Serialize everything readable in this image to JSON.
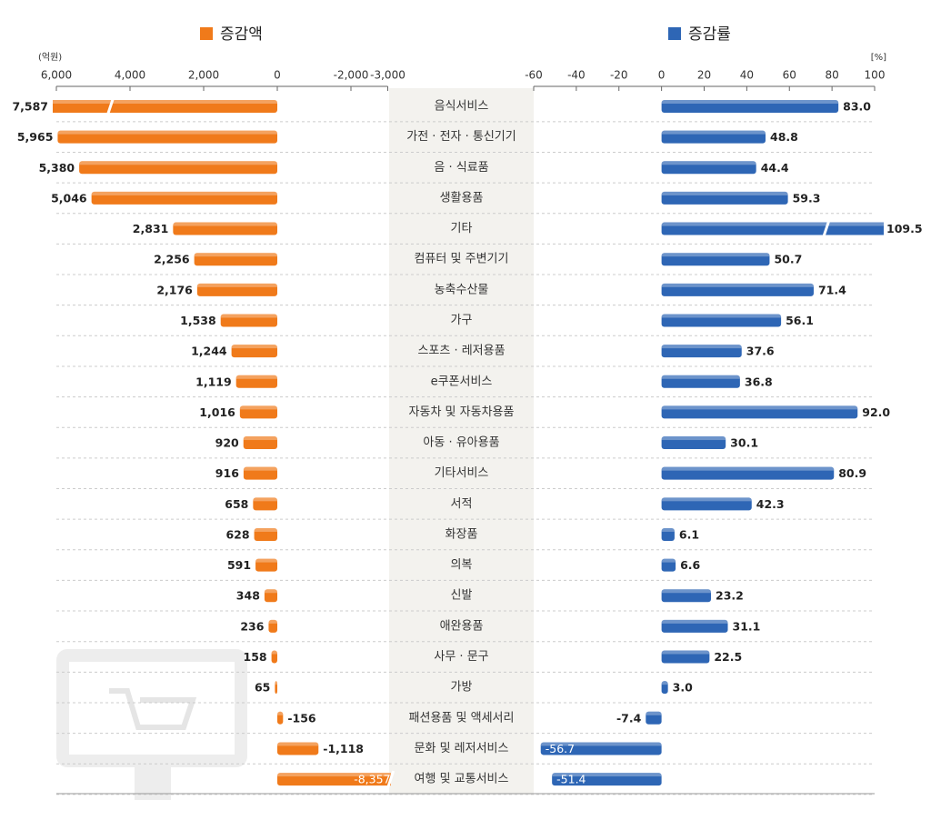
{
  "chart_data": {
    "type": "bar",
    "orientation": "horizontal",
    "grid": true,
    "categories": [
      "음식서비스",
      "가전 · 전자 · 통신기기",
      "음 · 식료품",
      "생활용품",
      "기타",
      "컴퓨터 및 주변기기",
      "농축수산물",
      "가구",
      "스포츠 · 레저용품",
      "e쿠폰서비스",
      "자동차 및 자동차용품",
      "아동 · 유아용품",
      "기타서비스",
      "서적",
      "화장품",
      "의복",
      "신발",
      "애완용품",
      "사무 · 문구",
      "가방",
      "패션용품 및 액세서리",
      "문화 및 레저서비스",
      "여행 및 교통서비스"
    ],
    "series": [
      {
        "name": "증감액",
        "unit": "(억원)",
        "color": "#f07a1a",
        "values": [
          7587,
          5965,
          5380,
          5046,
          2831,
          2256,
          2176,
          1538,
          1244,
          1119,
          1016,
          920,
          916,
          658,
          628,
          591,
          348,
          236,
          158,
          65,
          -156,
          -1118,
          -8357
        ],
        "value_labels": [
          "7,587",
          "5,965",
          "5,380",
          "5,046",
          "2,831",
          "2,256",
          "2,176",
          "1,538",
          "1,244",
          "1,119",
          "1,016",
          "920",
          "916",
          "658",
          "628",
          "591",
          "348",
          "236",
          "158",
          "65",
          "-156",
          "-1,118",
          "-8,357"
        ],
        "xlim": [
          6000,
          -3000
        ],
        "xticks": [
          {
            "value": 6000,
            "label": "6,000"
          },
          {
            "value": 4000,
            "label": "4,000"
          },
          {
            "value": 2000,
            "label": "2,000"
          },
          0,
          {
            "value": -2000,
            "label": "-2,000"
          },
          {
            "value": -3000,
            "label": "-3,000"
          }
        ]
      },
      {
        "name": "증감률",
        "unit": "[%]",
        "color": "#2e66b5",
        "values": [
          83.0,
          48.8,
          44.4,
          59.3,
          109.5,
          50.7,
          71.4,
          56.1,
          37.6,
          36.8,
          92.0,
          30.1,
          80.9,
          42.3,
          6.1,
          6.6,
          23.2,
          31.1,
          22.5,
          3.0,
          -7.4,
          -56.7,
          -51.4
        ],
        "value_labels": [
          "83.0",
          "48.8",
          "44.4",
          "59.3",
          "109.5",
          "50.7",
          "71.4",
          "56.1",
          "37.6",
          "36.8",
          "92.0",
          "30.1",
          "80.9",
          "42.3",
          "6.1",
          "6.6",
          "23.2",
          "31.1",
          "22.5",
          "3.0",
          "-7.4",
          "-56.7",
          "-51.4"
        ],
        "xlim": [
          -60,
          100
        ],
        "xticks": [
          -60,
          -40,
          -20,
          0,
          20,
          40,
          60,
          80,
          100
        ]
      }
    ]
  }
}
